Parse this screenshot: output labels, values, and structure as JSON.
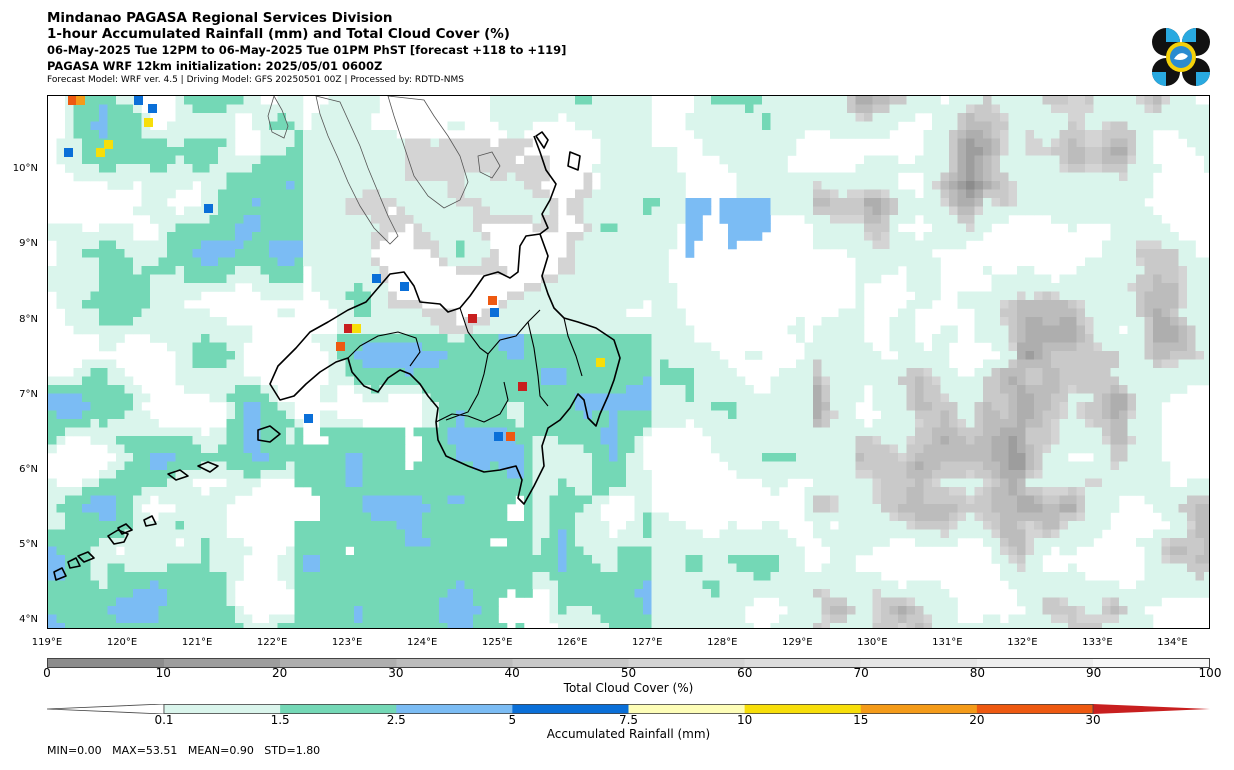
{
  "header": {
    "line1": "Mindanao PAGASA Regional Services Division",
    "line2": "1-hour Accumulated Rainfall (mm) and Total Cloud Cover (%)",
    "line3": "06-May-2025 Tue 12PM to 06-May-2025 Tue 01PM PhST [forecast +118 to +119]",
    "line4": "PAGASA WRF 12km initialization: 2025/05/01 0600Z",
    "line5": "Forecast Model: WRF ver. 4.5 | Driving Model: GFS 20250501 00Z | Processed by: RDTD-NMS"
  },
  "map": {
    "lat_labels": [
      "10°N",
      "9°N",
      "8°N",
      "7°N",
      "6°N",
      "5°N",
      "4°N"
    ],
    "lon_labels": [
      "119°E",
      "120°E",
      "121°E",
      "122°E",
      "123°E",
      "124°E",
      "125°E",
      "126°E",
      "127°E",
      "128°E",
      "129°E",
      "130°E",
      "131°E",
      "132°E",
      "133°E",
      "134°E"
    ],
    "lon_range": [
      119,
      134.5
    ],
    "lat_range": [
      3.9,
      11
    ]
  },
  "cloud_colorbar": {
    "label": "Total Cloud Cover (%)",
    "ticks": [
      "0",
      "10",
      "20",
      "30",
      "40",
      "50",
      "60",
      "70",
      "80",
      "90",
      "100"
    ],
    "colors": [
      "#8c8c8c",
      "#9d9d9d",
      "#aeaeae",
      "#bcbcbc",
      "#c9c9c9",
      "#d4d4d4",
      "#dddddd",
      "#e6e6e6",
      "#eeeeee",
      "#f7f7f7"
    ]
  },
  "rain_colorbar": {
    "label": "Accumulated Rainfall (mm)",
    "ticks": [
      "0.1",
      "1.5",
      "2.5",
      "5",
      "7.5",
      "10",
      "15",
      "20",
      "30"
    ],
    "colors": [
      "#ffffff",
      "#daf5ec",
      "#74d8b6",
      "#7bbcf4",
      "#0a6fd8",
      "#fefeb8",
      "#f7de09",
      "#f49b19",
      "#ee5911",
      "#c81f1f"
    ]
  },
  "stats": {
    "text": "MIN=0.00   MAX=53.51   MEAN=0.90   STD=1.80"
  }
}
